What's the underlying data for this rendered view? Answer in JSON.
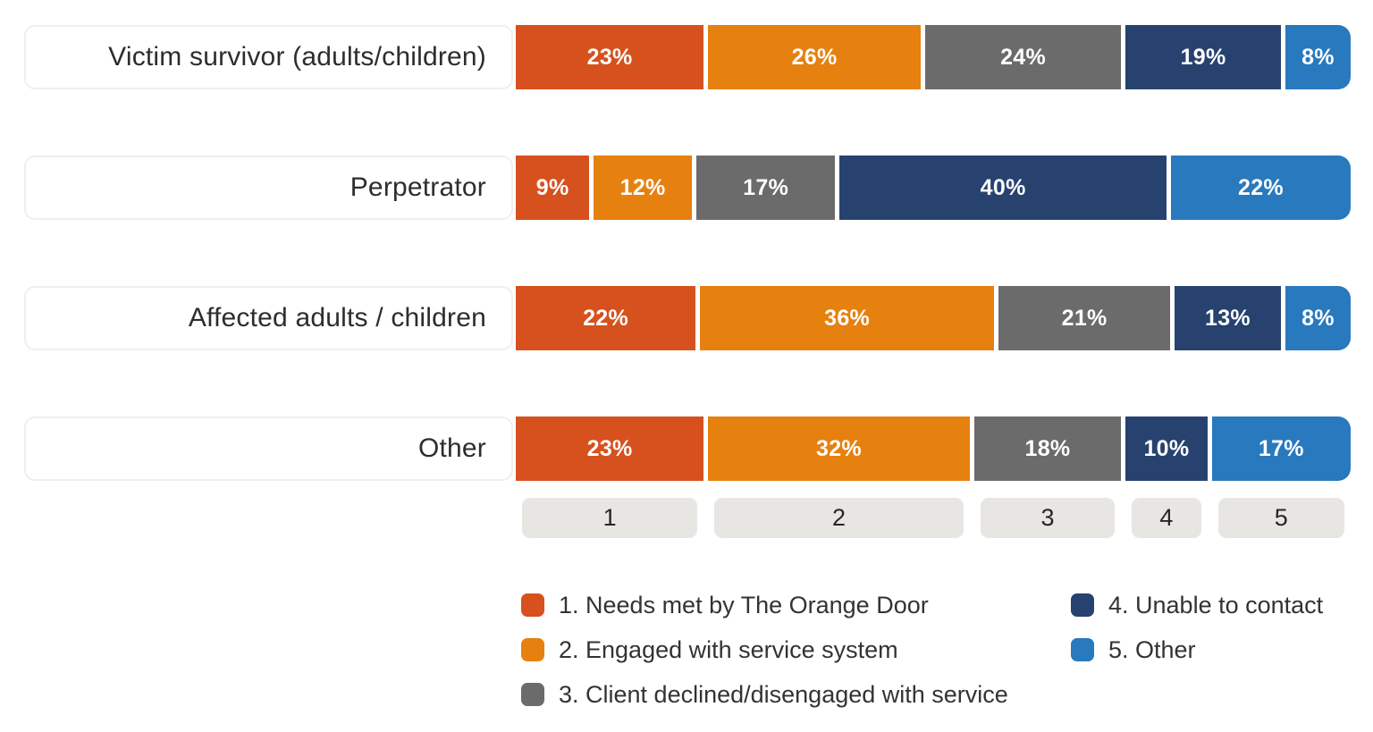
{
  "chart_data": {
    "type": "bar",
    "variant": "stacked-horizontal",
    "unit": "percent",
    "title": "",
    "categories": [
      "Victim survivor (adults/children)",
      "Perpetrator",
      "Affected adults / children",
      "Other"
    ],
    "series": [
      {
        "name": "1. Needs met by The Orange Door",
        "color": "#D6511E",
        "values": [
          23,
          9,
          22,
          23
        ]
      },
      {
        "name": "2. Engaged with service system",
        "color": "#E6800F",
        "values": [
          26,
          12,
          36,
          32
        ]
      },
      {
        "name": "3. Client declined/disengaged with service",
        "color": "#6B6B6B",
        "values": [
          24,
          17,
          21,
          18
        ]
      },
      {
        "name": "4. Unable to contact",
        "color": "#27426F",
        "values": [
          19,
          40,
          13,
          10
        ]
      },
      {
        "name": "5. Other",
        "color": "#2879BD",
        "values": [
          8,
          22,
          8,
          17
        ]
      }
    ],
    "axis_ticks": [
      "1",
      "2",
      "3",
      "4",
      "5"
    ],
    "xlim": [
      0,
      100
    ],
    "grid": false,
    "legend_position": "bottom"
  },
  "legend": {
    "columns": [
      {
        "items": [
          {
            "label": "1. Needs met by The Orange Door",
            "color": "#D6511E"
          },
          {
            "label": "2. Engaged with service system",
            "color": "#E6800F"
          },
          {
            "label": "3. Client declined/disengaged with service",
            "color": "#6B6B6B"
          }
        ]
      },
      {
        "items": [
          {
            "label": "4. Unable to contact",
            "color": "#27426F"
          },
          {
            "label": "5. Other",
            "color": "#2879BD"
          }
        ]
      }
    ]
  },
  "colors": {
    "background": "#FFFFFF",
    "row_label_border": "#EFEFEF",
    "axis_box_bg": "#E8E6E3",
    "text_dark": "#2D2D2D",
    "value_label": "#FFFFFF"
  }
}
